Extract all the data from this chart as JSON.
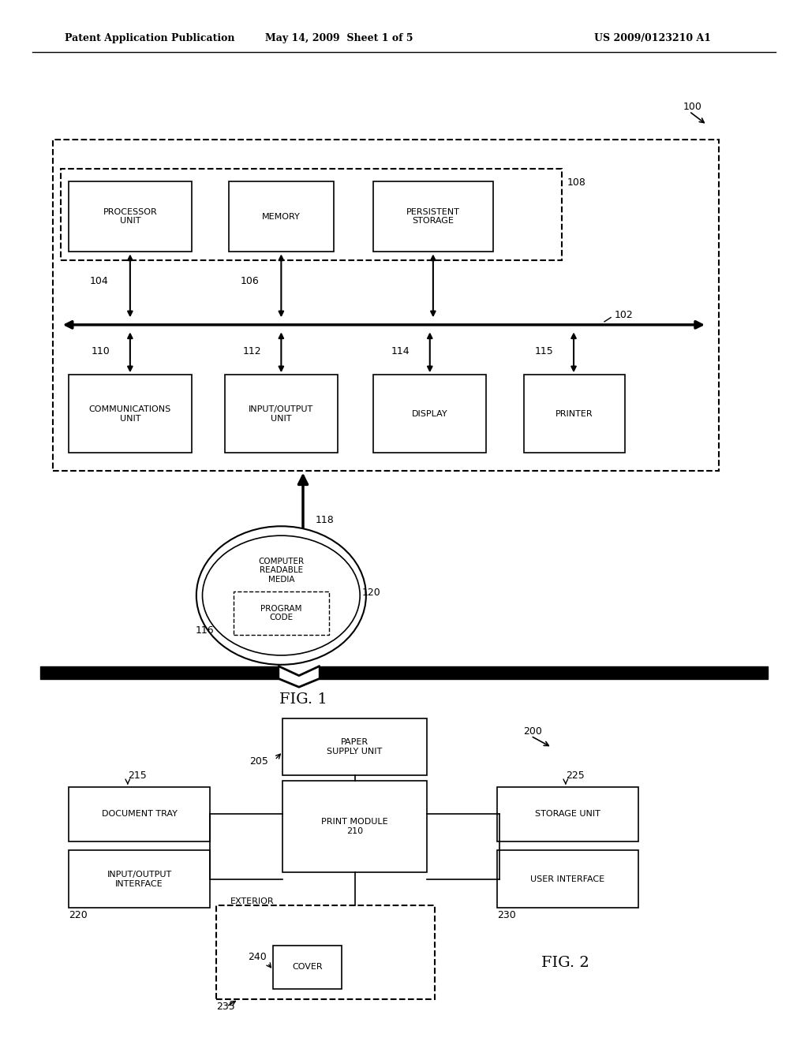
{
  "bg_color": "#ffffff",
  "header_left": "Patent Application Publication",
  "header_mid": "May 14, 2009  Sheet 1 of 5",
  "header_right": "US 2009/0123210 A1",
  "fig1_label": "FIG. 1",
  "fig2_label": "FIG. 2"
}
